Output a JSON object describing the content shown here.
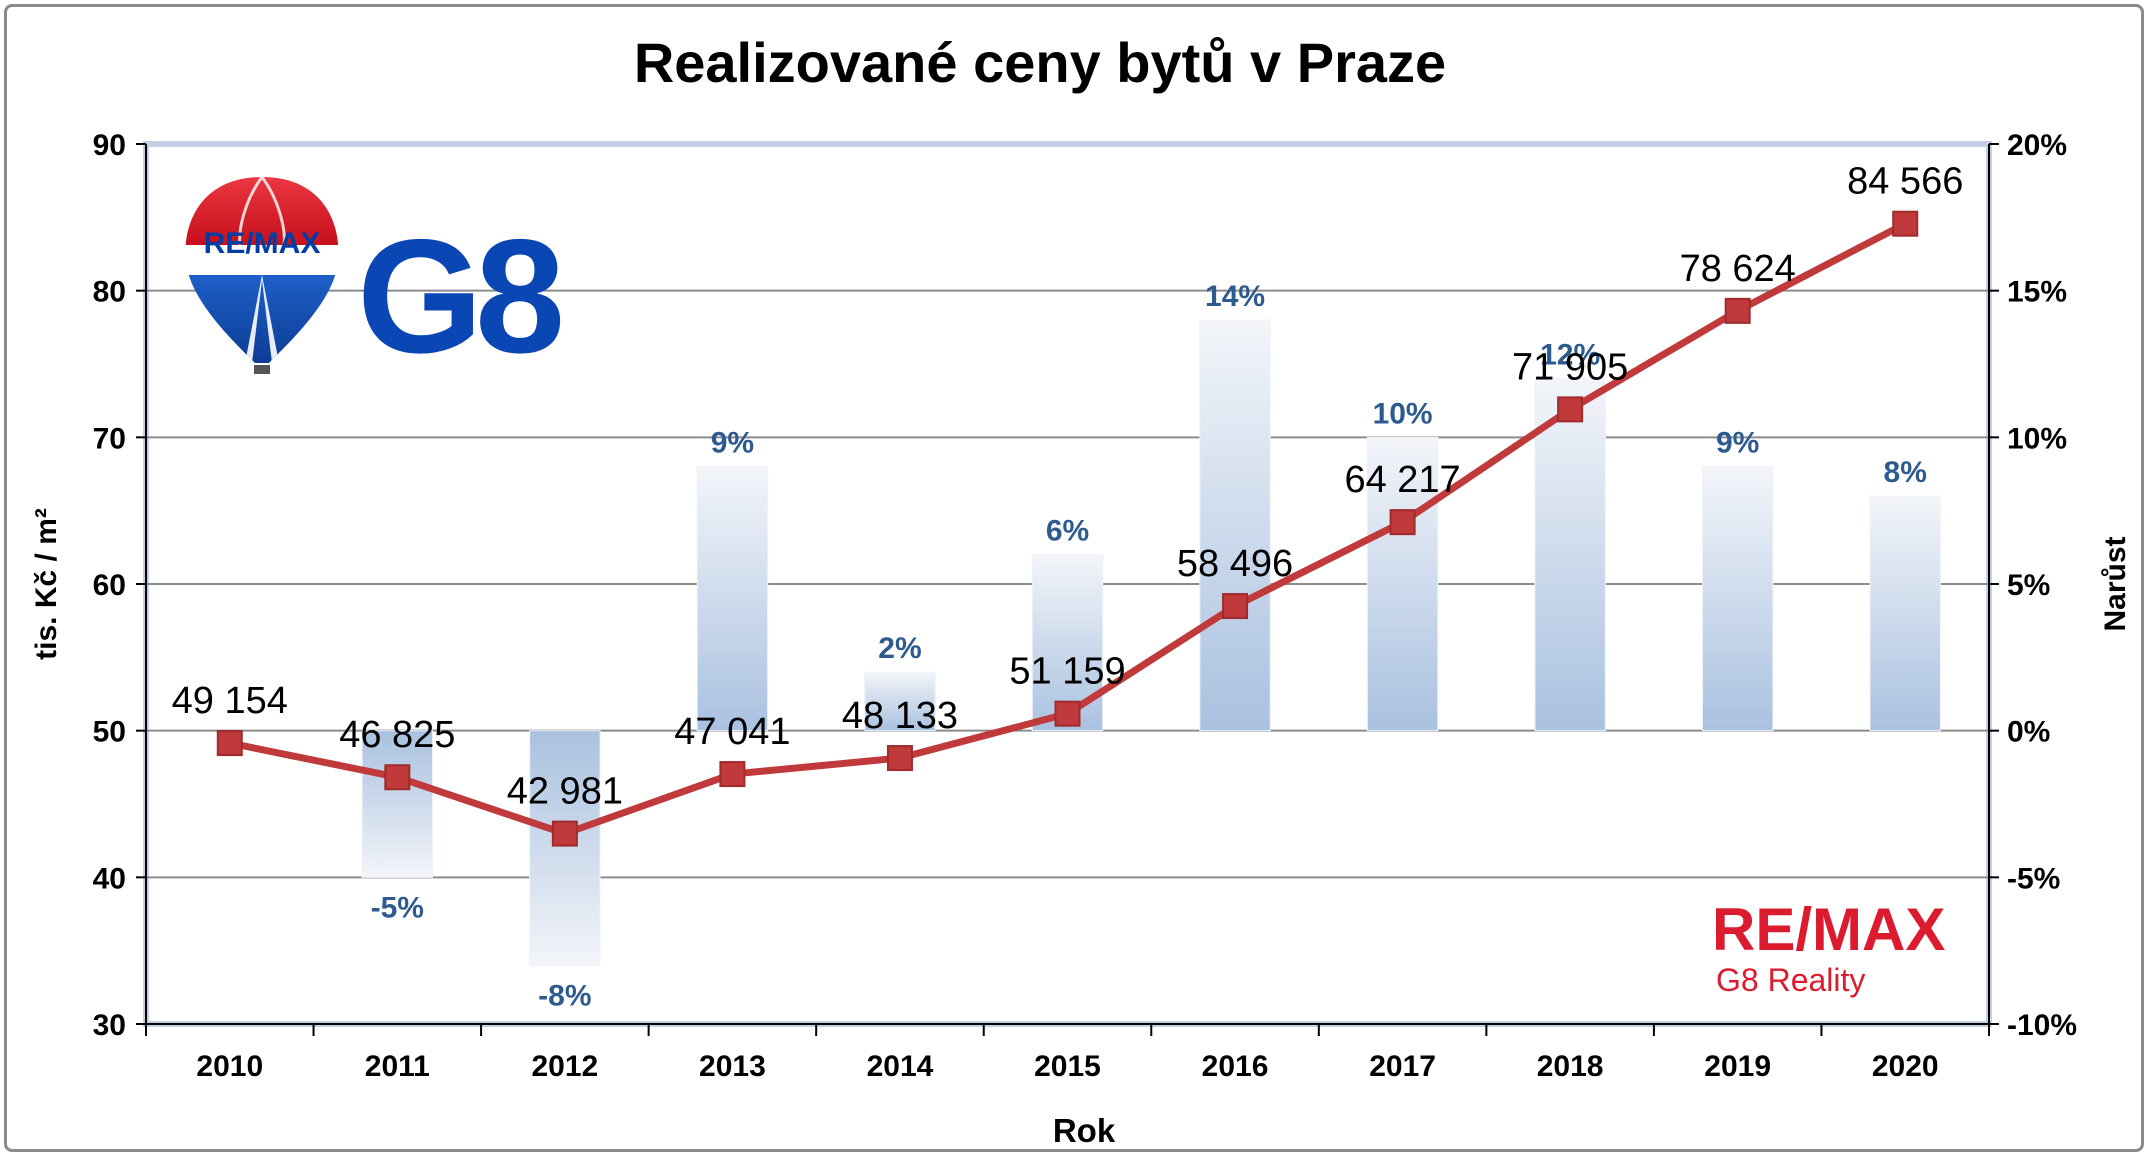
{
  "chart_data": {
    "type": "bar+line",
    "title": "Realizované ceny bytů v Praze",
    "xlabel": "Rok",
    "ylabel_left": "tis. Kč / m²",
    "ylabel_right": "Narůst",
    "categories": [
      "2010",
      "2011",
      "2012",
      "2013",
      "2014",
      "2015",
      "2016",
      "2017",
      "2018",
      "2019",
      "2020"
    ],
    "left_axis": {
      "min": 30,
      "max": 90,
      "step": 10,
      "ticks": [
        "30",
        "40",
        "50",
        "60",
        "70",
        "80",
        "90"
      ]
    },
    "right_axis": {
      "min": -10,
      "max": 20,
      "step": 5,
      "ticks": [
        "-10%",
        "-5%",
        "0%",
        "5%",
        "10%",
        "15%",
        "20%"
      ]
    },
    "growth_bars": {
      "axis": "right",
      "values": [
        null,
        -5,
        -8,
        9,
        2,
        6,
        14,
        10,
        12,
        9,
        8
      ],
      "labels": [
        "",
        "-5%",
        "-8%",
        "9%",
        "2%",
        "6%",
        "14%",
        "10%",
        "12%",
        "9%",
        "8%"
      ],
      "color": "#2e5b8f"
    },
    "price_line": {
      "axis": "left",
      "values": [
        49.154,
        46.825,
        42.981,
        47.041,
        48.133,
        51.159,
        58.496,
        64.217,
        71.905,
        78.624,
        84.566
      ],
      "labels": [
        "49 154",
        "46 825",
        "42 981",
        "47 041",
        "48 133",
        "51 159",
        "58 496",
        "64 217",
        "71 905",
        "78 624",
        "84 566"
      ],
      "color": "#c0393b"
    },
    "grid": true,
    "legend": "none"
  },
  "logos": {
    "balloon_text": "RE/MAX",
    "g8_text": "G8",
    "remax_text": "RE/MAX",
    "g8_reality_text": "G8 Reality"
  },
  "colors": {
    "remax_red": "#dc1c2e",
    "remax_blue": "#003da5",
    "label_blue": "#2e5b8f"
  }
}
